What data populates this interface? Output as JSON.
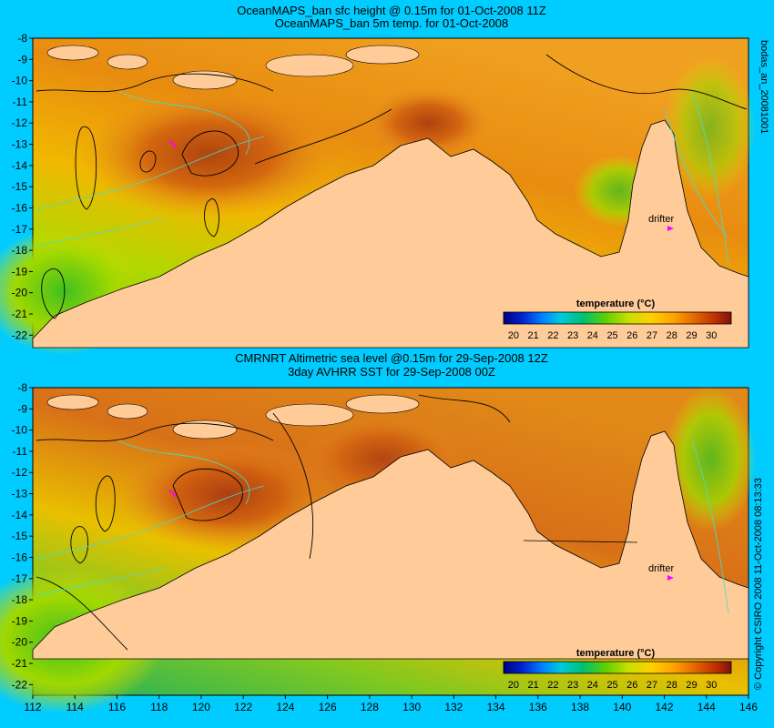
{
  "panels": [
    {
      "title_line1": "OceanMAPS_ban sfc height @ 0.15m for 01-Oct-2008 11Z",
      "title_line2": "OceanMAPS_ban 5m temp. for 01-Oct-2008",
      "side_label": "bodas_an_20081001",
      "drifter_label": "drifter",
      "colorbar_title": "temperature (°C)"
    },
    {
      "title_line1": "CMRNRT Altimetric sea level  @0.15m  for 29-Sep-2008 12Z",
      "title_line2": "3day AVHRR SST for 29-Sep-2008 00Z",
      "side_label": "© Copyright CSIRO 2008   11-Oct-2008 08:13:33",
      "drifter_label": "drifter",
      "colorbar_title": "temperature (°C)"
    }
  ],
  "chart_data": {
    "type": "heatmap",
    "x_ticks": [
      "112",
      "114",
      "116",
      "118",
      "120",
      "122",
      "124",
      "126",
      "128",
      "130",
      "132",
      "134",
      "136",
      "138",
      "140",
      "142",
      "144",
      "146"
    ],
    "y_ticks": [
      "-8",
      "-9",
      "-10",
      "-11",
      "-12",
      "-13",
      "-14",
      "-15",
      "-16",
      "-17",
      "-18",
      "-19",
      "-20",
      "-21",
      "-22"
    ],
    "xlim": [
      112,
      146
    ],
    "ylim": [
      -22.5,
      -8
    ],
    "colorbar_ticks": [
      "20",
      "21",
      "22",
      "23",
      "24",
      "25",
      "26",
      "27",
      "28",
      "29",
      "30"
    ],
    "colorbar_range": [
      19.5,
      31
    ],
    "drifter_position": [
      143.0,
      -17.0
    ],
    "drifter_track": [
      119.0,
      -12.9
    ]
  },
  "colors": {
    "background": "#00ccff",
    "land": "#ffcc99",
    "contour_sea_level": "#000000",
    "contour_isobath": "#40e0d0",
    "drifter": "#ff00ff"
  }
}
